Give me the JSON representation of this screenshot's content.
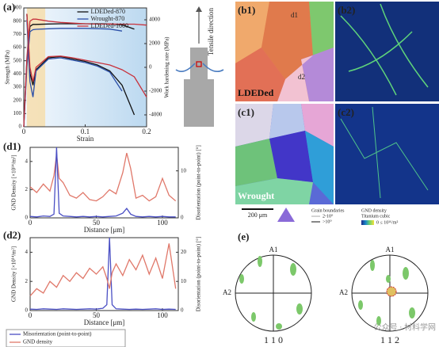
{
  "chart_data": [
    {
      "type": "line",
      "panel": "(a)",
      "xlabel": "Strain",
      "ylabel": "Strength (MPa)",
      "y2label": "Work hardening rate (MPa)",
      "x": [
        0,
        0.005,
        0.01,
        0.015,
        0.02,
        0.04,
        0.06,
        0.08,
        0.1,
        0.12,
        0.14,
        0.16,
        0.18,
        0.2
      ],
      "xlim": [
        0,
        0.2
      ],
      "xticks": [
        0,
        0.1,
        0.2
      ],
      "ylim": [
        0,
        900
      ],
      "yticks": [
        0,
        100,
        200,
        300,
        400,
        500,
        600,
        700,
        800,
        900
      ],
      "y2lim": [
        -5000,
        5000
      ],
      "y2ticks": [
        -4000,
        -2000,
        0,
        2000,
        4000
      ],
      "legend": "upper center",
      "series": [
        {
          "name": "LDEDed-870",
          "color": "#111111",
          "values": [
            0,
            500,
            760,
            775,
            775,
            778,
            780,
            780,
            780,
            780,
            778,
            772,
            740,
            null
          ]
        },
        {
          "name": "Wrought-870",
          "color": "#2b4fa8",
          "values": [
            0,
            450,
            720,
            735,
            738,
            742,
            745,
            745,
            745,
            743,
            740,
            725,
            null,
            null
          ]
        },
        {
          "name": "LDEDed-1000",
          "color": "#c8323c",
          "values": [
            0,
            520,
            800,
            815,
            815,
            800,
            790,
            785,
            780,
            778,
            778,
            777,
            777,
            770
          ]
        },
        {
          "color": "#111111",
          "axis": "y2",
          "values": [
            null,
            4500,
            -500,
            -1500,
            -200,
            800,
            900,
            700,
            500,
            200,
            -300,
            -1500,
            -4000,
            null
          ]
        },
        {
          "color": "#2b4fa8",
          "axis": "y2",
          "values": [
            null,
            4000,
            -1200,
            -2500,
            -300,
            700,
            800,
            600,
            400,
            100,
            -400,
            -2000,
            null,
            null
          ]
        },
        {
          "color": "#c8323c",
          "axis": "y2",
          "values": [
            null,
            4500,
            0,
            -1200,
            0,
            900,
            950,
            800,
            600,
            400,
            200,
            -200,
            -800,
            -2500
          ]
        }
      ]
    },
    {
      "type": "line",
      "panel": "(d1)",
      "xlabel": "Distance [μm]",
      "ylabel": "GND Density [×10¹⁴/m²]",
      "y2label": "Disorientation (point-to-point) [°]",
      "x": [
        0,
        5,
        10,
        15,
        18,
        20,
        22,
        25,
        30,
        35,
        40,
        45,
        50,
        55,
        60,
        65,
        70,
        73,
        76,
        80,
        85,
        90,
        95,
        100,
        105,
        110
      ],
      "xlim": [
        0,
        112
      ],
      "xticks": [
        0,
        50,
        100
      ],
      "ylim": [
        0,
        5
      ],
      "yticks": [
        0,
        2,
        4
      ],
      "y2lim": [
        0,
        15
      ],
      "y2ticks": [
        0,
        10
      ],
      "series": [
        {
          "color": "#e0786a",
          "values": [
            2.2,
            1.8,
            2.4,
            1.9,
            3.0,
            4.5,
            2.8,
            2.5,
            1.6,
            1.4,
            1.8,
            1.3,
            1.2,
            1.5,
            2.0,
            1.7,
            3.2,
            4.6,
            3.5,
            1.4,
            1.6,
            1.2,
            1.5,
            2.8,
            1.6,
            1.2
          ]
        },
        {
          "color": "#4a4fc4",
          "axis": "y2",
          "values": [
            0.3,
            0.2,
            0.4,
            0.3,
            0.8,
            15,
            1.0,
            0.4,
            0.3,
            0.2,
            0.3,
            0.2,
            0.3,
            0.2,
            0.3,
            0.4,
            1.0,
            2.0,
            0.8,
            0.3,
            0.2,
            0.3,
            0.2,
            0.3,
            0.2,
            0.2
          ]
        }
      ]
    },
    {
      "type": "line",
      "panel": "(d2)",
      "xlabel": "Distance [μm]",
      "ylabel": "GND Density [×10¹⁴/m²]",
      "y2label": "Disorientation (point-to-point) [°]",
      "x": [
        0,
        5,
        10,
        15,
        20,
        25,
        30,
        35,
        40,
        45,
        50,
        55,
        58,
        60,
        62,
        65,
        70,
        75,
        80,
        85,
        90,
        95,
        100,
        105,
        110
      ],
      "xlim": [
        0,
        112
      ],
      "xticks": [
        0,
        50,
        100
      ],
      "ylim": [
        0,
        5
      ],
      "yticks": [
        0,
        2,
        4
      ],
      "y2lim": [
        0,
        25
      ],
      "y2ticks": [
        0,
        10,
        20
      ],
      "legend": "below",
      "series": [
        {
          "name": "Misorientation (point-to-point)",
          "color": "#4a4fc4",
          "axis": "y2",
          "values": [
            0.5,
            0.4,
            0.6,
            0.5,
            0.4,
            0.6,
            0.5,
            0.4,
            0.5,
            0.6,
            0.5,
            0.8,
            2,
            25,
            2,
            0.6,
            0.5,
            0.4,
            0.5,
            0.4,
            0.5,
            0.6,
            0.4,
            0.5,
            0.4
          ]
        },
        {
          "name": "GND density",
          "color": "#e0786a",
          "values": [
            1.0,
            1.5,
            1.2,
            2.0,
            1.6,
            2.4,
            2.0,
            2.6,
            2.2,
            2.9,
            2.5,
            3.0,
            2.2,
            1.5,
            2.6,
            3.2,
            2.4,
            3.5,
            2.8,
            3.8,
            2.5,
            3.6,
            2.2,
            4.6,
            1.5
          ]
        }
      ]
    }
  ],
  "schematic": {
    "label": "Tensile direction"
  },
  "micrographs": {
    "b1": "(b1)",
    "b2": "(b2)",
    "c1": "(c1)",
    "c2": "(c2)",
    "d1": "d1",
    "d2": "d2",
    "ldeded": "LDEDed",
    "wrought": "Wrought",
    "scale": "200 μm",
    "gb_title": "Grain boundaries",
    "gb_low": "2-10°",
    "gb_high": ">10°",
    "gnd_title": "GND density",
    "gnd_sub": "Titanium cubic",
    "gnd_range": "0 ≤ 10¹⁶/m²"
  },
  "pole_figures": {
    "panel": "(e)",
    "a1": "A1",
    "a2": "A2",
    "left": "1 1 0",
    "right": "1 1 2"
  },
  "watermark": "公众号 · 材料学网"
}
